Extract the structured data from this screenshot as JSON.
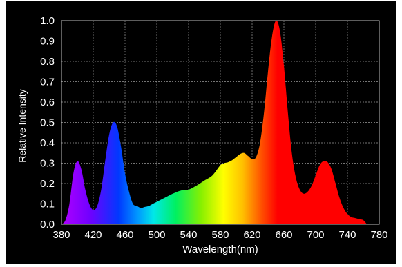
{
  "chart_data": {
    "type": "area",
    "title": "",
    "xlabel": "Wavelength(nm)",
    "ylabel": "Relative Intensity",
    "xlim": [
      380,
      780
    ],
    "ylim": [
      0,
      1.0
    ],
    "grid": true,
    "legend": "none",
    "x_ticks": [
      "380",
      "420",
      "460",
      "500",
      "540",
      "580",
      "620",
      "660",
      "700",
      "740",
      "780"
    ],
    "y_ticks": [
      "0.0",
      "0.1",
      "0.2",
      "0.3",
      "0.4",
      "0.5",
      "0.6",
      "0.7",
      "0.8",
      "0.9",
      "1.0"
    ],
    "series": [
      {
        "x": [
          380,
          385,
          390,
          395,
          400,
          405,
          410,
          415,
          420,
          425,
          430,
          435,
          440,
          445,
          450,
          455,
          460,
          465,
          470,
          475,
          480,
          485,
          490,
          495,
          500,
          510,
          520,
          530,
          540,
          550,
          560,
          570,
          580,
          585,
          590,
          595,
          600,
          605,
          610,
          615,
          620,
          625,
          630,
          635,
          640,
          645,
          650,
          655,
          660,
          665,
          670,
          675,
          680,
          685,
          690,
          695,
          700,
          705,
          710,
          715,
          720,
          725,
          730,
          735,
          740,
          745,
          750,
          755,
          760,
          765,
          770,
          775,
          780
        ],
        "y": [
          0.0,
          0.02,
          0.1,
          0.25,
          0.31,
          0.27,
          0.17,
          0.1,
          0.07,
          0.09,
          0.17,
          0.31,
          0.44,
          0.5,
          0.48,
          0.38,
          0.25,
          0.16,
          0.1,
          0.09,
          0.08,
          0.085,
          0.09,
          0.1,
          0.11,
          0.13,
          0.15,
          0.165,
          0.17,
          0.19,
          0.215,
          0.24,
          0.29,
          0.3,
          0.305,
          0.315,
          0.33,
          0.345,
          0.35,
          0.335,
          0.32,
          0.33,
          0.4,
          0.55,
          0.75,
          0.92,
          1.0,
          0.95,
          0.78,
          0.55,
          0.35,
          0.23,
          0.17,
          0.15,
          0.16,
          0.19,
          0.24,
          0.29,
          0.31,
          0.305,
          0.27,
          0.2,
          0.13,
          0.08,
          0.05,
          0.035,
          0.03,
          0.025,
          0.02,
          0.0,
          0.0,
          0.0,
          0.0
        ]
      }
    ],
    "colors": {
      "background": "#000000",
      "grid": "#9a9a9a",
      "text": "#ffffff",
      "spectrum": [
        "#b000ff",
        "#6a00ff",
        "#0030ff",
        "#0090ff",
        "#00e8e0",
        "#00f060",
        "#90f000",
        "#ffff00",
        "#ffc000",
        "#ff4000",
        "#ff0000",
        "#ff0000"
      ]
    }
  }
}
